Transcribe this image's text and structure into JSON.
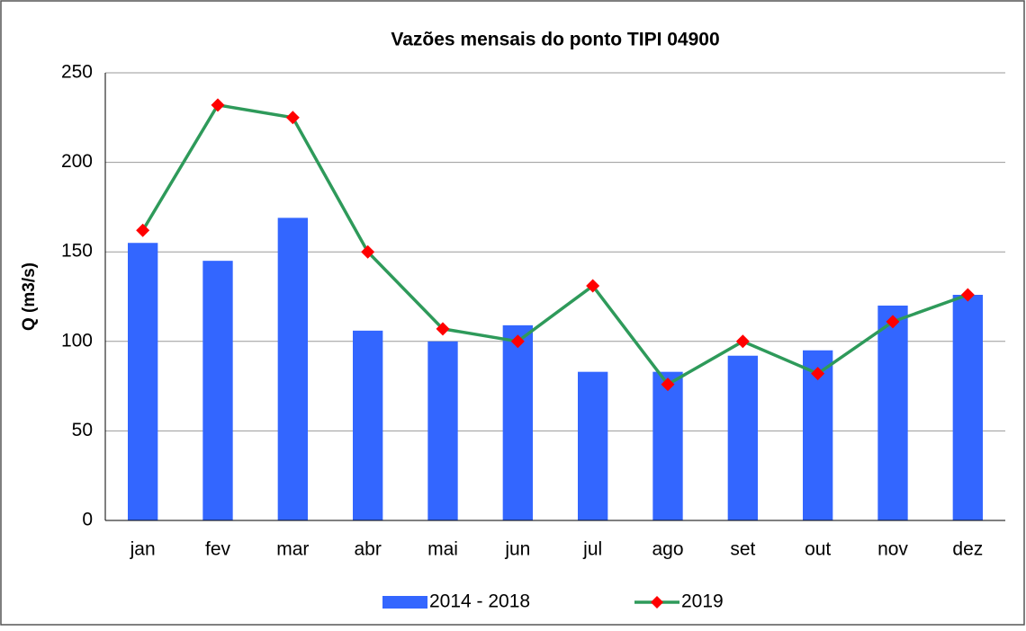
{
  "chart_data": {
    "type": "combo",
    "title": "Vazões mensais do ponto TIPI 04900",
    "y_label": "Q (m3/s)",
    "categories": [
      "jan",
      "fev",
      "mar",
      "abr",
      "mai",
      "jun",
      "jul",
      "ago",
      "set",
      "out",
      "nov",
      "dez"
    ],
    "series": [
      {
        "name": "2014 - 2018",
        "type": "bar",
        "color": "#3366ff",
        "values": [
          155,
          145,
          169,
          106,
          100,
          109,
          83,
          83,
          92,
          95,
          120,
          126
        ]
      },
      {
        "name": "2019",
        "type": "line",
        "color": "#2e9a5a",
        "marker_color": "#ff0000",
        "values": [
          162,
          232,
          225,
          150,
          107,
          100,
          131,
          76,
          100,
          82,
          111,
          126
        ]
      }
    ],
    "ylim": [
      0,
      250
    ],
    "yticks": [
      0,
      50,
      100,
      150,
      200,
      250
    ],
    "grid": true,
    "legend": "bottom"
  }
}
